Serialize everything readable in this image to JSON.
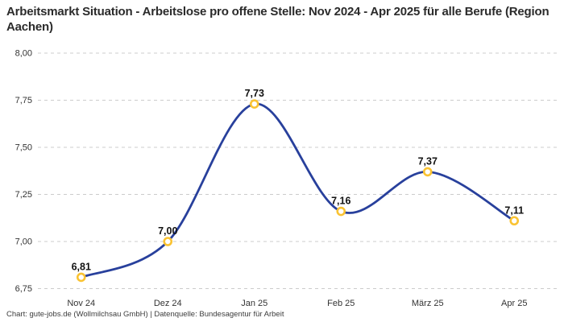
{
  "header": {
    "title": "Arbeitsmarkt Situation - Arbeitslose pro offene Stelle: Nov 2024 - Apr 2025 für alle Berufe (Region Aachen)"
  },
  "footer": {
    "credit": "Chart: gute-jobs.de (Wollmilchsau GmbH) | Datenquelle: Bundesagentur für Arbeit"
  },
  "chart_data": {
    "type": "line",
    "title": "Arbeitsmarkt Situation - Arbeitslose pro offene Stelle: Nov 2024 - Apr 2025 für alle Berufe (Region Aachen)",
    "categories": [
      "Nov 24",
      "Dez 24",
      "Jan 25",
      "Feb 25",
      "März 25",
      "Apr 25"
    ],
    "series": [
      {
        "name": "Arbeitslose pro offene Stelle",
        "values": [
          6.81,
          7.0,
          7.73,
          7.16,
          7.37,
          7.11
        ],
        "value_labels": [
          "6,81",
          "7,00",
          "7,73",
          "7,16",
          "7,37",
          "7,11"
        ]
      }
    ],
    "ylim": [
      6.75,
      8.0
    ],
    "y_ticks": [
      8.0,
      7.75,
      7.5,
      7.25,
      7.0,
      6.75
    ],
    "y_tick_labels": [
      "8,00",
      "7,75",
      "7,50",
      "7,25",
      "7,00",
      "6,75"
    ],
    "grid": "horizontal-dashed",
    "legend": "none",
    "colors": {
      "line": "#28409c",
      "marker_ring": "#fac332",
      "marker_fill": "#ffffff",
      "gridline": "#cccccc",
      "tick_text": "#333333",
      "label_text": "#111111"
    }
  }
}
